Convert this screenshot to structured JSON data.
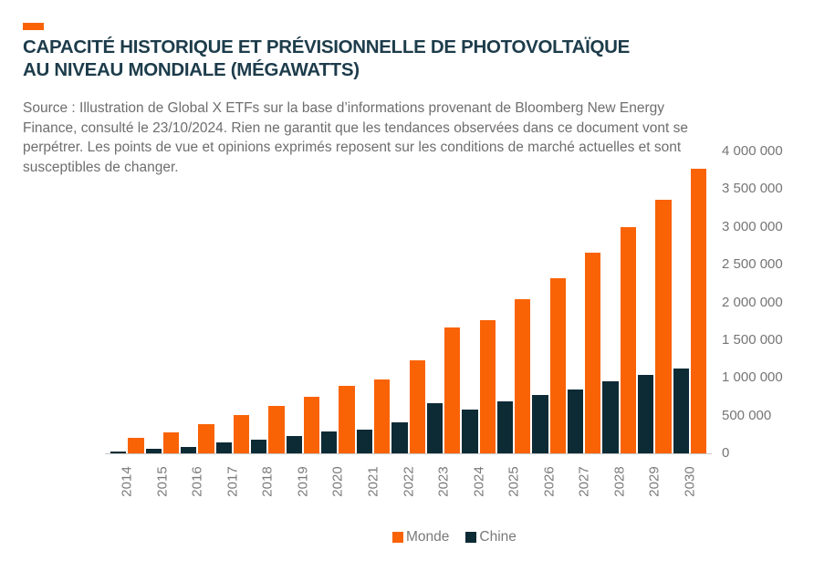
{
  "header": {
    "dash_color": "#F96306",
    "title_line1": "CAPACITÉ HISTORIQUE ET PRÉVISIONNELLE DE PHOTOVOLTAÏQUE",
    "title_line2": "AU NIVEAU MONDIALE (MÉGAWATTS)"
  },
  "source_note": "Source : Illustration de Global X ETFs sur la base d’informations provenant de Bloomberg New Energy Finance, consulté le 23/10/2024. Rien ne garantit que les tendances observées dans ce document vont se perpétrer. Les points de vue et opinions exprimés reposent sur les conditions de marché actuelles et sont susceptibles de changer.",
  "chart_data": {
    "type": "bar",
    "title": "Capacité historique et prévisionnelle de photovoltaïque au niveau mondiale (mégawatts)",
    "categories": [
      "2014",
      "2015",
      "2016",
      "2017",
      "2018",
      "2019",
      "2020",
      "2021",
      "2022",
      "2023",
      "2024",
      "2025",
      "2026",
      "2027",
      "2028",
      "2029",
      "2030"
    ],
    "bar_order_within_group": [
      "Chine",
      "Monde"
    ],
    "series": [
      {
        "name": "Monde",
        "color": "#F96306",
        "values": [
          200000,
          275000,
          385000,
          505000,
          625000,
          755000,
          895000,
          975000,
          1235000,
          1665000,
          1760000,
          2040000,
          2325000,
          2665000,
          3000000,
          3365000,
          3765000
        ]
      },
      {
        "name": "Chine",
        "color": "#0D2B35",
        "values": [
          30000,
          55000,
          90000,
          140000,
          180000,
          235000,
          285000,
          320000,
          415000,
          665000,
          585000,
          685000,
          775000,
          845000,
          955000,
          1035000,
          1130000
        ]
      }
    ],
    "y_axis": {
      "min": 0,
      "max": 4000000,
      "tick_step": 500000,
      "side": "right",
      "tick_labels": [
        "4 000 000",
        "3 500 000",
        "3 000 000",
        "2 500 000",
        "2 000 000",
        "1 500 000",
        "1 000 000",
        "500 000",
        "0"
      ]
    },
    "x_axis": {
      "label_rotation_deg": -90
    },
    "grid": false,
    "legend_position": "bottom-center",
    "legend": [
      {
        "label": "Monde",
        "color": "#F96306"
      },
      {
        "label": "Chine",
        "color": "#0D2B35"
      }
    ]
  }
}
